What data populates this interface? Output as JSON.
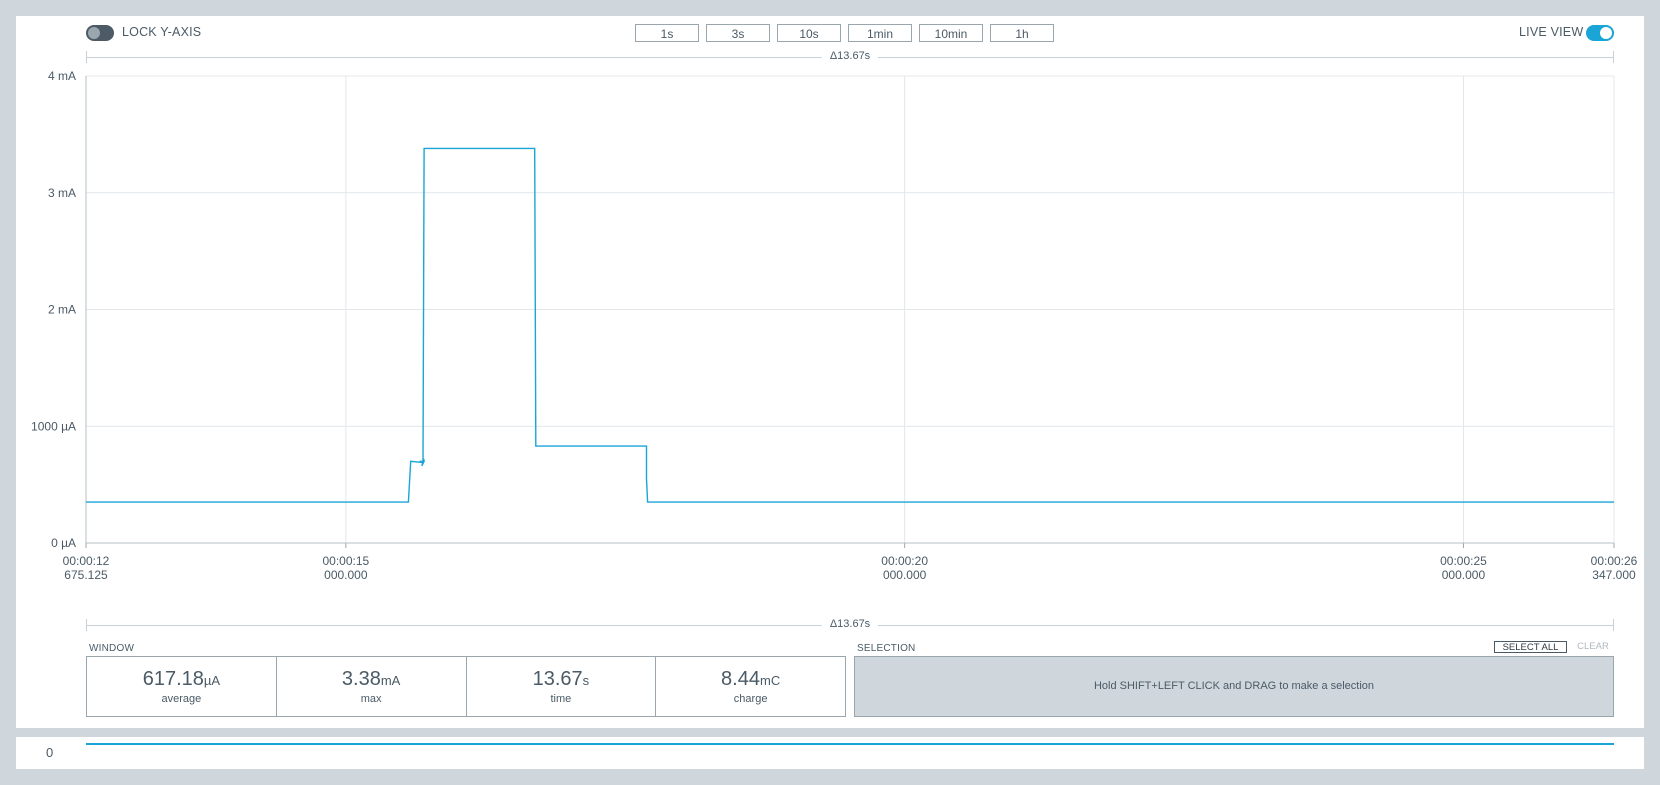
{
  "toolbar": {
    "lock_label": "LOCK Y-AXIS",
    "live_label": "LIVE VIEW",
    "window_buttons": [
      "1s",
      "3s",
      "10s",
      "1min",
      "10min",
      "1h"
    ]
  },
  "span_label": "Δ13.67s",
  "chart_data": {
    "type": "line",
    "y_ticks": [
      "4 mA",
      "3 mA",
      "2 mA",
      "1000 µA",
      "0 µA"
    ],
    "y_tick_values_uA": [
      4000,
      3000,
      2000,
      1000,
      0
    ],
    "x_ticks": [
      {
        "time": "00:00:12",
        "sub": "675.125",
        "value_s": 12.675
      },
      {
        "time": "00:00:15",
        "sub": "000.000",
        "value_s": 15.0
      },
      {
        "time": "00:00:20",
        "sub": "000.000",
        "value_s": 20.0
      },
      {
        "time": "00:00:25",
        "sub": "000.000",
        "value_s": 25.0
      },
      {
        "time": "00:00:26",
        "sub": "347.000",
        "value_s": 26.347
      }
    ],
    "xlim_s": [
      12.675,
      26.347
    ],
    "ylim_uA": [
      0,
      4000
    ],
    "series": [
      {
        "x_s": [
          12.675,
          15.56,
          15.58,
          15.68,
          15.7,
          15.68,
          15.7,
          15.66,
          15.69,
          15.69,
          15.7,
          15.7,
          16.2,
          16.69,
          16.7,
          16.7,
          17.2,
          17.69,
          17.69,
          17.7,
          26.347
        ],
        "y_uA": [
          350,
          350,
          700,
          690,
          720,
          660,
          700,
          700,
          700,
          700,
          3370,
          3380,
          3380,
          3380,
          830,
          830,
          830,
          830,
          550,
          350,
          350
        ]
      }
    ],
    "grid": true,
    "color": "#1aa5d6"
  },
  "window": {
    "label": "WINDOW",
    "stats": [
      {
        "value": "617.18",
        "unit": "µA",
        "caption": "average"
      },
      {
        "value": "3.38",
        "unit": "mA",
        "caption": "max"
      },
      {
        "value": "13.67",
        "unit": "s",
        "caption": "time"
      },
      {
        "value": "8.44",
        "unit": "mC",
        "caption": "charge"
      }
    ]
  },
  "selection": {
    "label": "SELECTION",
    "select_all": "SELECT ALL",
    "clear": "CLEAR",
    "hint": "Hold SHIFT+LEFT CLICK and DRAG to make a selection"
  },
  "minimap": {
    "zero_label": "0"
  }
}
